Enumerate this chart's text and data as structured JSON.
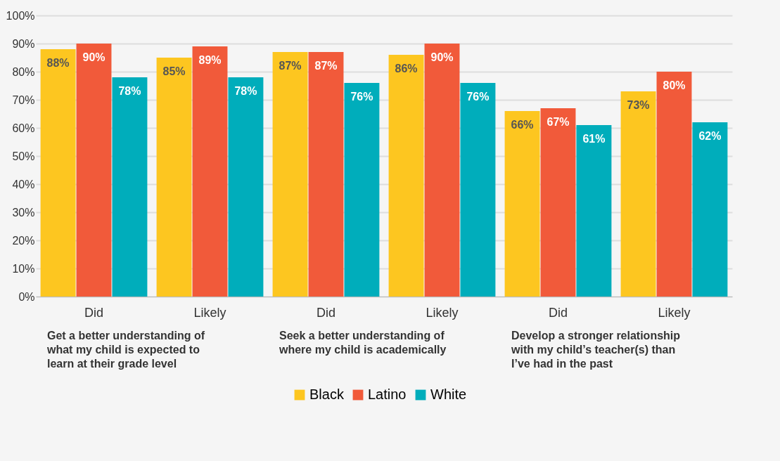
{
  "chart_data": {
    "type": "bar",
    "categories": [
      "Did",
      "Likely",
      "Did",
      "Likely",
      "Did",
      "Likely"
    ],
    "series": [
      {
        "name": "Black",
        "color": "#fdc620",
        "values": [
          88,
          85,
          87,
          86,
          66,
          73
        ]
      },
      {
        "name": "Latino",
        "color": "#f15a3a",
        "values": [
          90,
          89,
          87,
          90,
          67,
          80
        ]
      },
      {
        "name": "White",
        "color": "#00adbb",
        "values": [
          78,
          78,
          76,
          76,
          61,
          62
        ]
      }
    ],
    "ylim": [
      0,
      100
    ],
    "yticks": [
      {
        "value": 0,
        "label": "0%"
      },
      {
        "value": 10,
        "label": "10%"
      },
      {
        "value": 20,
        "label": "20%"
      },
      {
        "value": 30,
        "label": "30%"
      },
      {
        "value": 40,
        "label": "40%"
      },
      {
        "value": 50,
        "label": "50%"
      },
      {
        "value": 60,
        "label": "60%"
      },
      {
        "value": 70,
        "label": "70%"
      },
      {
        "value": 80,
        "label": "80%"
      },
      {
        "value": 90,
        "label": "90%"
      },
      {
        "value": 100,
        "label": "100%"
      }
    ],
    "value_labels": [
      [
        "88%",
        "85%",
        "87%",
        "86%",
        "66%",
        "73%"
      ],
      [
        "90%",
        "89%",
        "87%",
        "90%",
        "67%",
        "80%"
      ],
      [
        "78%",
        "78%",
        "76%",
        "76%",
        "61%",
        "62%"
      ]
    ],
    "annotations": [
      "Get a better understanding of what my child is expected to learn at their grade level",
      "Seek a better understanding of where my child is academically",
      "Develop a stronger relationship with my child’s teacher(s) than I’ve had in the past"
    ],
    "grid": "y",
    "legend": "bottom"
  }
}
